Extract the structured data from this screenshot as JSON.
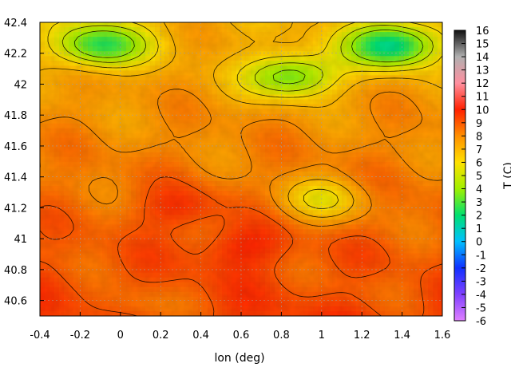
{
  "chart_data": {
    "type": "heatmap",
    "title": "",
    "xlabel": "lon (deg)",
    "ylabel": "",
    "colorbar_label": "T (C)",
    "xlim": [
      -0.4,
      1.6
    ],
    "ylim": [
      40.5,
      42.4
    ],
    "x_ticks": [
      "-0.4",
      "-0.2",
      "0",
      "0.2",
      "0.4",
      "0.6",
      "0.8",
      "1",
      "1.2",
      "1.4",
      "1.6"
    ],
    "y_ticks": [
      "40.6",
      "40.8",
      "41",
      "41.2",
      "41.4",
      "41.6",
      "41.8",
      "42",
      "42.2",
      "42.4"
    ],
    "colorbar_range": [
      -6,
      16
    ],
    "colorbar_ticks": [
      "-6",
      "-5",
      "-4",
      "-3",
      "-2",
      "-1",
      "0",
      "1",
      "2",
      "3",
      "4",
      "5",
      "6",
      "7",
      "8",
      "9",
      "10",
      "11",
      "12",
      "13",
      "14",
      "15",
      "16"
    ],
    "grid": true,
    "contours": true,
    "colormap_stops": [
      {
        "value": -6,
        "color": "#e080ff"
      },
      {
        "value": -4,
        "color": "#8040ff"
      },
      {
        "value": -2,
        "color": "#1030ff"
      },
      {
        "value": 0,
        "color": "#00c0ff"
      },
      {
        "value": 2,
        "color": "#00e070"
      },
      {
        "value": 4,
        "color": "#a0f000"
      },
      {
        "value": 6,
        "color": "#ffe000"
      },
      {
        "value": 8,
        "color": "#ff9000"
      },
      {
        "value": 10,
        "color": "#ff2000"
      },
      {
        "value": 12,
        "color": "#ff90a0"
      },
      {
        "value": 14,
        "color": "#b0b0b0"
      },
      {
        "value": 16,
        "color": "#101010"
      }
    ],
    "field_features": [
      {
        "lon": -0.1,
        "lat": 42.25,
        "value": 3.5
      },
      {
        "lon": 1.35,
        "lat": 42.25,
        "value": 2.5
      },
      {
        "lon": 0.85,
        "lat": 42.05,
        "value": 4.0
      },
      {
        "lon": 1.0,
        "lat": 41.25,
        "value": 6.0
      },
      {
        "lon": 0.1,
        "lat": 40.55,
        "value": 7.5
      },
      {
        "lon": 0.6,
        "lat": 40.95,
        "value": 9.5
      },
      {
        "lon": 0.3,
        "lat": 41.2,
        "value": 9.5
      },
      {
        "lon": 1.3,
        "lat": 40.7,
        "value": 8.0
      }
    ]
  }
}
